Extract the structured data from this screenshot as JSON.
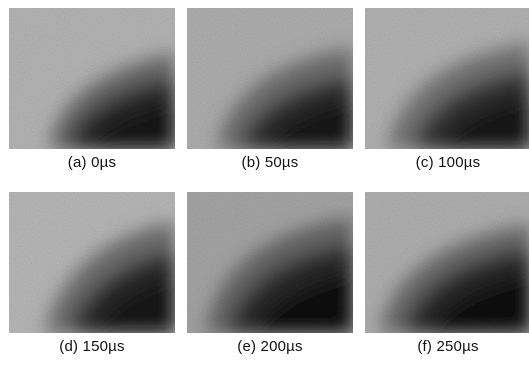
{
  "figure": {
    "panels": [
      {
        "caption": "(a) 0µs"
      },
      {
        "caption": "(b) 50µs"
      },
      {
        "caption": "(c) 100µs"
      },
      {
        "caption": "(d) 150µs"
      },
      {
        "caption": "(e) 200µs"
      },
      {
        "caption": "(f) 250µs"
      }
    ]
  }
}
